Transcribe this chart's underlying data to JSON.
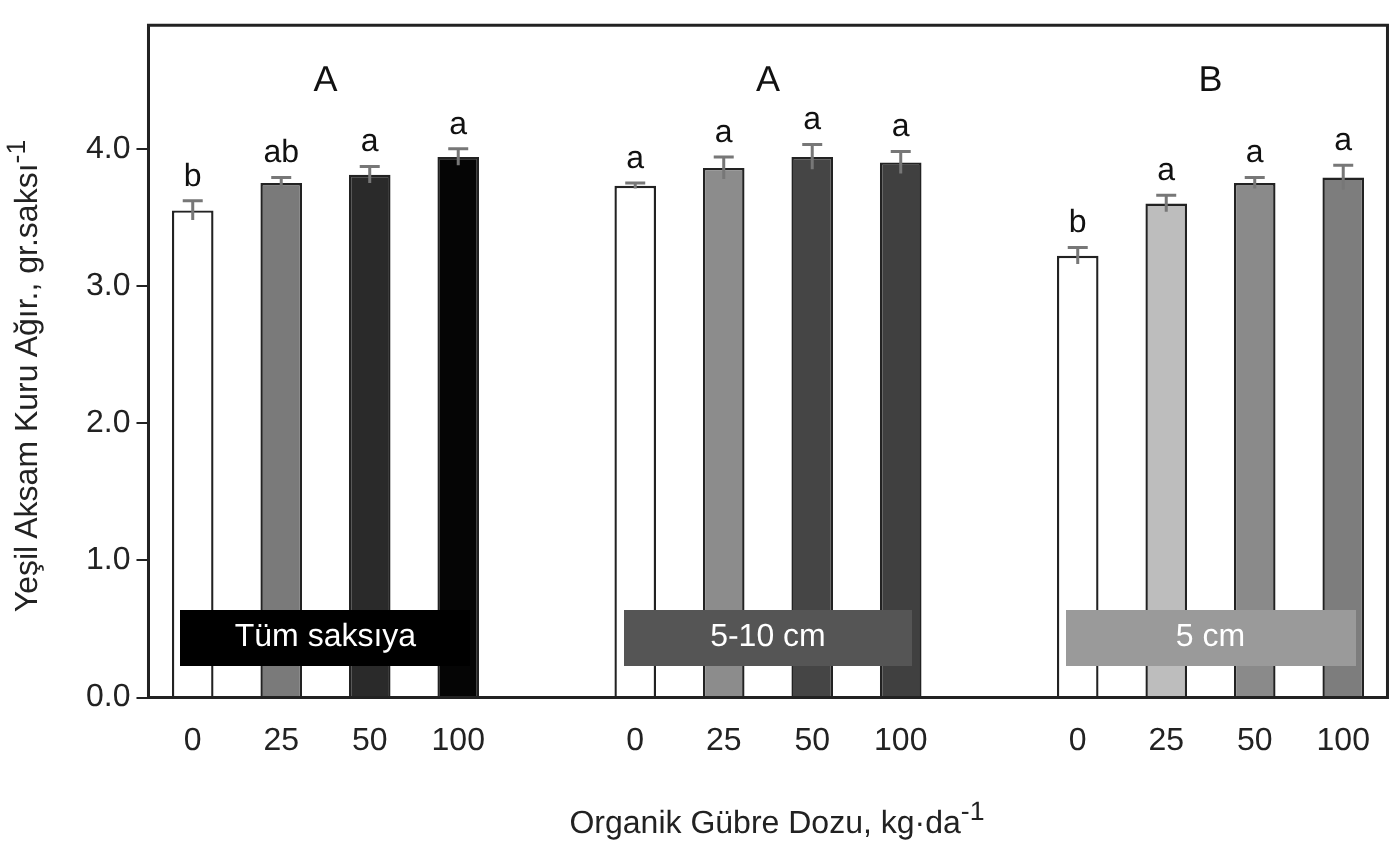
{
  "chart_data": {
    "type": "bar",
    "xlabel": "Organik Gübre Dozu, kg·da$^{-1}$",
    "ylabel": "Yeşil Aksam Kuru Ağır., gr.saksı$^{-1}$",
    "categories": [
      "0",
      "25",
      "50",
      "100",
      null,
      "0",
      "25",
      "50",
      "100",
      null,
      "0",
      "25",
      "50",
      "100"
    ],
    "values": [
      3.55,
      3.75,
      3.81,
      3.94,
      null,
      3.73,
      3.86,
      3.94,
      3.9,
      null,
      3.22,
      3.6,
      3.75,
      3.79
    ],
    "errors": [
      0.07,
      0.04,
      0.06,
      0.06,
      null,
      0.02,
      0.08,
      0.09,
      0.08,
      null,
      0.06,
      0.06,
      0.04,
      0.09
    ],
    "value_labels": [
      "b",
      "ab",
      "a",
      "a",
      null,
      "a",
      "a",
      "a",
      "a",
      null,
      "b",
      "a",
      "a",
      "a"
    ],
    "colors": [
      "#ffffff",
      "#7a7a7a",
      "#2a2a2a",
      "#050505",
      "#ffffff",
      "#ffffff",
      "#8c8c8c",
      "#454545",
      "#404040",
      "#ffffff",
      "#ffffff",
      "#bdbdbd",
      "#8a8a8a",
      "#7d7d7d"
    ],
    "ylim": [
      0,
      4.9
    ],
    "yticks": [
      {
        "value": 0,
        "label": "0.0"
      },
      {
        "value": 1,
        "label": "1.0"
      },
      {
        "value": 2,
        "label": "2.0"
      },
      {
        "value": 3,
        "label": "3.0"
      },
      {
        "value": 4,
        "label": "4.0"
      }
    ],
    "annotations": [
      "A",
      "A",
      "B",
      "Tüm saksıya",
      "5-10 cm",
      "5 cm"
    ],
    "grid": false,
    "legend": false
  }
}
